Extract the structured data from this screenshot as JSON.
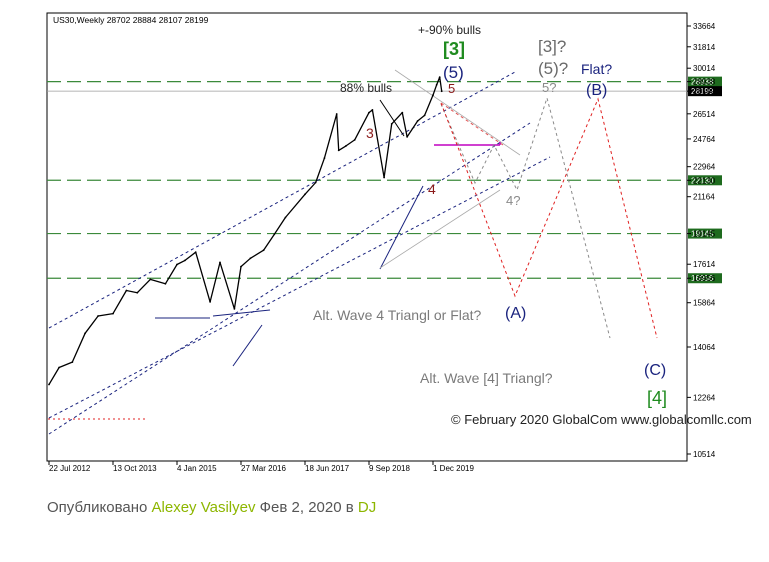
{
  "chart_data": {
    "type": "line",
    "symbol_header": "US30,Weekly  28702 28884 28107 28199",
    "y_ticks": [
      33664,
      31814,
      30014,
      28938,
      28199,
      26514,
      24764,
      22964,
      22130,
      21164,
      19145,
      17614,
      16956,
      15864,
      14064,
      12264,
      10514
    ],
    "x_ticks": [
      "22 Jul 2012",
      "13 Oct 2013",
      "4 Jan 2015",
      "27 Mar 2016",
      "18 Jun 2017",
      "9 Sep 2018",
      "1 Dec 2019"
    ],
    "price_series": {
      "name": "US30 weekly",
      "x": [
        "2012-07-22",
        "2012-10-01",
        "2013-01-01",
        "2013-04-01",
        "2013-07-01",
        "2013-10-13",
        "2014-01-15",
        "2014-04-01",
        "2014-07-01",
        "2014-10-15",
        "2015-01-04",
        "2015-03-01",
        "2015-05-15",
        "2015-08-24",
        "2015-11-01",
        "2016-02-10",
        "2016-03-27",
        "2016-06-01",
        "2016-09-01",
        "2016-11-15",
        "2017-02-01",
        "2017-06-18",
        "2017-09-01",
        "2017-11-01",
        "2018-01-26",
        "2018-02-09",
        "2018-04-01",
        "2018-06-01",
        "2018-09-09",
        "2018-10-03",
        "2018-12-24",
        "2019-02-15",
        "2019-04-30",
        "2019-06-03",
        "2019-08-15",
        "2019-10-03",
        "2019-12-01",
        "2019-12-27",
        "2020-01-17",
        "2020-01-31"
      ],
      "y": [
        12700,
        13300,
        13500,
        14600,
        15300,
        15400,
        16400,
        16300,
        16900,
        16700,
        17600,
        17800,
        18200,
        15900,
        17700,
        15600,
        17500,
        17900,
        18300,
        19100,
        20000,
        21300,
        22000,
        23500,
        26500,
        24000,
        24300,
        24700,
        26600,
        26800,
        22300,
        25800,
        26600,
        24900,
        26000,
        26400,
        27900,
        28700,
        29300,
        28199
      ]
    },
    "horizontal_levels": [
      {
        "value": 28938,
        "label": "28938",
        "color": "#3b8a3b"
      },
      {
        "value": 28199,
        "label": "28199",
        "color": "#9e9e9e"
      },
      {
        "value": 22130,
        "label": "22130",
        "color": "#3b8a3b"
      },
      {
        "value": 19145,
        "label": "19145",
        "color": "#3b8a3b"
      },
      {
        "value": 16956,
        "label": "16956",
        "color": "#3b8a3b"
      }
    ],
    "wave_labels": [
      {
        "text": "+-90% bulls",
        "color": "#222222"
      },
      {
        "text": "[3]",
        "color": "#1f8b1f"
      },
      {
        "text": "(5)",
        "color": "#1a237e"
      },
      {
        "text": "5",
        "color": "#8b1a1a"
      },
      {
        "text": "88% bulls",
        "color": "#222222"
      },
      {
        "text": "3",
        "color": "#8b1a1a"
      },
      {
        "text": "4",
        "color": "#8b1a1a"
      },
      {
        "text": "[3]?",
        "color": "#6a6a6a"
      },
      {
        "text": "(5)?",
        "color": "#6a6a6a"
      },
      {
        "text": "5?",
        "color": "#8a8a8a"
      },
      {
        "text": "4?",
        "color": "#8a8a8a"
      },
      {
        "text": "Flat?",
        "color": "#1a237e"
      },
      {
        "text": "(B)",
        "color": "#1a237e"
      },
      {
        "text": "(A)",
        "color": "#1a237e"
      },
      {
        "text": "(C)",
        "color": "#1a237e"
      },
      {
        "text": "[4]",
        "color": "#1f8b1f"
      },
      {
        "text": "Alt. Wave 4 Triangl or Flat?",
        "color": "#7a7a7a"
      },
      {
        "text": "Alt. Wave [4] Triangl?",
        "color": "#7a7a7a"
      }
    ],
    "copyright": "© February 2020 GlobalCom www.globalcomllc.com",
    "colors": {
      "price": "#000000",
      "channel": "#1a237e",
      "projection_red": "#e02020",
      "projection_gray": "#8a8a8a",
      "grid_level": "#3b8a3b",
      "triangle": "#c000c0"
    }
  },
  "footer": {
    "published_label": "Опубликовано",
    "author": "Alexey Vasilyev",
    "date": "Фев 2, 2020",
    "in_label": "в",
    "category": "DJ"
  }
}
